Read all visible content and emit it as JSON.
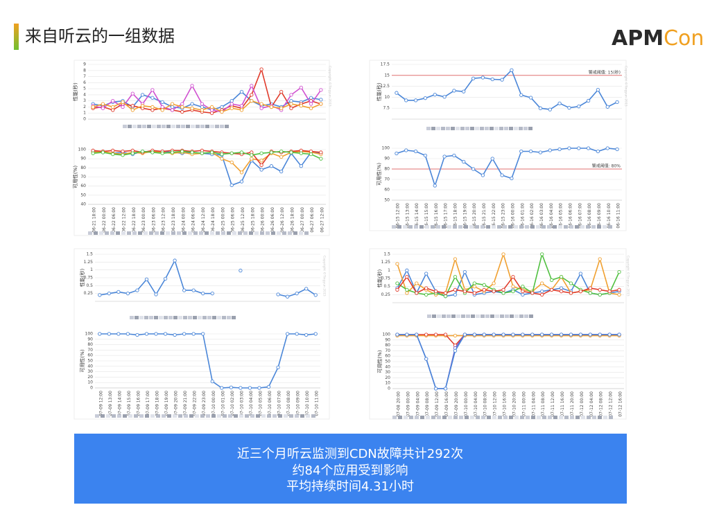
{
  "header": {
    "title": "来自听云的一组数据",
    "logo_dark": "APM",
    "logo_accent": "Con"
  },
  "watermark": "Copyright ©Tingyun 2015",
  "summary": {
    "lines": [
      "近三个月听云监测到CDN故障共计292次",
      "约84个应用受到影响",
      "平均持续时间4.31小时"
    ]
  },
  "chart_data": [
    {
      "type": "line",
      "y_label": "性能(秒)",
      "ylim": [
        0,
        9
      ],
      "yticks": [
        0,
        1,
        2,
        3,
        4,
        5,
        6,
        7,
        8,
        9
      ],
      "grid": true,
      "series": [
        {
          "color": "#4a86d8",
          "values": [
            2.5,
            2.2,
            2.8,
            3,
            2,
            4,
            3.5,
            2.8,
            2,
            1.8,
            2.5,
            2,
            1.5,
            2,
            3,
            4.5,
            3,
            2.2,
            2.5,
            2,
            3,
            2.8,
            3.5,
            3.2
          ]
        },
        {
          "color": "#e03a2a",
          "values": [
            1.8,
            2,
            1.5,
            2.5,
            2.2,
            1.8,
            1.5,
            1.8,
            1.5,
            1.2,
            1.5,
            1.2,
            1,
            1.5,
            2.2,
            1.8,
            4,
            8.2,
            2,
            4.5,
            1.8,
            2.5,
            3,
            2.5
          ]
        },
        {
          "color": "#d050d0",
          "values": [
            2.2,
            1.8,
            3,
            2,
            4.2,
            2.5,
            4.8,
            2,
            1.5,
            2.5,
            5.5,
            2.5,
            1.5,
            1.2,
            2.5,
            2.2,
            5.5,
            1.8,
            2.2,
            1.5,
            4,
            5.2,
            2.5,
            4.8
          ]
        },
        {
          "color": "#f0a030",
          "values": [
            2,
            2.5,
            2,
            2.8,
            1.5,
            2.2,
            2,
            1.5,
            2.5,
            2,
            1.8,
            1.5,
            2,
            1.2,
            1.8,
            1.5,
            3,
            2.5,
            2,
            1.8,
            2.5,
            2.2,
            1.8,
            2.5
          ]
        }
      ]
    },
    {
      "type": "line",
      "y_label": "可用性(%)",
      "ylim": [
        40,
        100
      ],
      "yticks": [
        40,
        50,
        60,
        70,
        80,
        90,
        100
      ],
      "grid": true,
      "categories": [
        "06-21 18:00",
        "06-22 00:00",
        "06-22 06:00",
        "06-22 12:00",
        "06-22 18:00",
        "06-23 00:00",
        "06-23 06:00",
        "06-23 12:00",
        "06-23 18:00",
        "06-24 00:00",
        "06-24 06:00",
        "06-24 12:00",
        "06-24 18:00",
        "06-25 00:00",
        "06-25 06:00",
        "06-25 12:00",
        "06-25 18:00",
        "06-26 00:00",
        "06-26 06:00",
        "06-26 12:00",
        "06-26 18:00",
        "06-27 00:00",
        "06-27 06:00",
        "06-27 12:00"
      ],
      "series": [
        {
          "color": "#4a86d8",
          "values": [
            98,
            97,
            96,
            97,
            95,
            98,
            97,
            98,
            97,
            96,
            97,
            96,
            95,
            94,
            61,
            65,
            88,
            78,
            82,
            76,
            96,
            82,
            97,
            96
          ]
        },
        {
          "color": "#f0a030",
          "values": [
            97,
            98,
            96,
            95,
            97,
            96,
            98,
            97,
            96,
            97,
            95,
            96,
            97,
            90,
            86,
            75,
            90,
            88,
            96,
            92,
            97,
            98,
            97,
            95
          ]
        },
        {
          "color": "#e03a2a",
          "values": [
            99,
            98,
            99,
            98,
            99,
            97,
            99,
            98,
            99,
            99,
            98,
            99,
            98,
            97,
            96,
            95,
            97,
            83,
            98,
            97,
            98,
            99,
            98,
            97
          ]
        },
        {
          "color": "#50c040",
          "values": [
            96,
            97,
            95,
            94,
            96,
            98,
            97,
            96,
            97,
            98,
            97,
            96,
            97,
            95,
            96,
            97,
            94,
            96,
            97,
            98,
            97,
            96,
            95,
            90
          ]
        }
      ]
    },
    {
      "type": "line",
      "y_label": "性能(秒)",
      "ylim": [
        5,
        17.5
      ],
      "yticks": [
        7.5,
        10,
        12.5,
        15,
        17.5
      ],
      "grid": true,
      "threshold": {
        "value": 15,
        "label": "警戒阈值: 15(秒)",
        "color": "#e07070"
      },
      "series": [
        {
          "color": "#4a86d8",
          "values": [
            11,
            9.3,
            9.3,
            9.8,
            10.6,
            10.1,
            11.5,
            11.3,
            14.3,
            14.5,
            14.1,
            14,
            16.2,
            10.5,
            9.9,
            7.5,
            7.2,
            8.6,
            7.6,
            7.9,
            9.2,
            11.7,
            7.8,
            8.9
          ]
        }
      ]
    },
    {
      "type": "line",
      "y_label": "可用性(%)",
      "ylim": [
        50,
        100
      ],
      "yticks": [
        50,
        60,
        70,
        80,
        90,
        100
      ],
      "grid": true,
      "threshold": {
        "value": 80,
        "label": "警戒阈值: 80%",
        "color": "#e07070"
      },
      "categories": [
        "06-15 12:00",
        "06-15 13:00",
        "06-15 14:00",
        "06-15 15:00",
        "06-15 16:00",
        "06-15 17:00",
        "06-15 18:00",
        "06-15 19:00",
        "06-15 20:00",
        "06-15 21:00",
        "06-15 22:00",
        "06-15 23:00",
        "06-16 00:00",
        "06-16 01:00",
        "06-16 02:00",
        "06-16 03:00",
        "06-16 04:00",
        "06-16 05:00",
        "06-16 06:00",
        "06-16 07:00",
        "06-16 08:00",
        "06-16 09:00",
        "06-16 10:00",
        "06-16 11:00"
      ],
      "series": [
        {
          "color": "#4a86d8",
          "values": [
            95,
            98,
            97,
            93,
            64,
            92,
            93,
            87,
            80,
            74,
            90,
            74,
            71,
            97,
            97,
            96,
            98,
            99,
            100,
            100,
            100,
            97,
            100,
            99
          ]
        }
      ]
    },
    {
      "type": "line",
      "y_label": "性能(秒)",
      "ylim": [
        0,
        1.5
      ],
      "yticks": [
        0.25,
        0.5,
        0.75,
        1,
        1.25,
        1.5
      ],
      "grid": true,
      "series": [
        {
          "color": "#4a86d8",
          "values": [
            0.2,
            0.25,
            0.3,
            0.25,
            0.35,
            0.7,
            0.22,
            0.72,
            1.3,
            0.35,
            0.35,
            0.25,
            0.25,
            null,
            null,
            0.98,
            null,
            null,
            null,
            0.22,
            0.15,
            0.25,
            0.4,
            0.2
          ]
        }
      ]
    },
    {
      "type": "line",
      "y_label": "可用性(%)",
      "ylim": [
        0,
        100
      ],
      "yticks": [
        0,
        10,
        20,
        30,
        40,
        50,
        60,
        70,
        80,
        90,
        100
      ],
      "grid": true,
      "categories": [
        "07-09 12:00",
        "07-09 13:00",
        "07-09 14:00",
        "07-09 15:00",
        "07-09 16:00",
        "07-09 17:00",
        "07-09 18:00",
        "07-09 19:00",
        "07-09 20:00",
        "07-09 21:00",
        "07-09 22:00",
        "07-09 23:00",
        "07-10 00:00",
        "07-10 01:00",
        "07-10 02:00",
        "07-10 03:00",
        "07-10 04:00",
        "07-10 05:00",
        "07-10 06:00",
        "07-10 07:00",
        "07-10 08:00",
        "07-10 09:00",
        "07-10 10:00",
        "07-10 11:00"
      ],
      "series": [
        {
          "color": "#4a86d8",
          "values": [
            100,
            100,
            100,
            100,
            98,
            100,
            100,
            100,
            98,
            100,
            100,
            100,
            12,
            0,
            1,
            0,
            0,
            0,
            2,
            38,
            100,
            100,
            98,
            100
          ]
        }
      ]
    },
    {
      "type": "line",
      "y_label": "性能(秒)",
      "ylim": [
        0,
        1.5
      ],
      "yticks": [
        0.25,
        0.5,
        0.75,
        1,
        1.25,
        1.5
      ],
      "grid": true,
      "series": [
        {
          "color": "#4a86d8",
          "values": [
            0.45,
            1,
            0.3,
            0.9,
            0.35,
            0.2,
            0.25,
            0.95,
            0.25,
            0.3,
            0.35,
            0.3,
            0.4,
            0.25,
            0.3,
            0.35,
            0.4,
            0.45,
            0.35,
            0.9,
            0.3,
            0.25,
            0.3,
            0.35
          ]
        },
        {
          "color": "#f0a030",
          "values": [
            1.2,
            0.3,
            0.6,
            0.4,
            0.25,
            0.3,
            1.35,
            0.4,
            0.5,
            0.35,
            0.6,
            1.5,
            0.5,
            0.4,
            0.35,
            0.6,
            0.4,
            0.8,
            0.3,
            0.35,
            0.4,
            1.35,
            0.3,
            0.25
          ]
        },
        {
          "color": "#50c040",
          "values": [
            0.6,
            0.4,
            0.3,
            0.25,
            0.3,
            0.2,
            0.8,
            0.3,
            0.6,
            0.55,
            0.4,
            0.3,
            0.35,
            0.5,
            0.3,
            1.5,
            0.7,
            0.8,
            0.6,
            0.4,
            0.3,
            0.25,
            0.3,
            0.95
          ]
        },
        {
          "color": "#e03a2a",
          "values": [
            0.4,
            0.8,
            0.3,
            0.45,
            0.35,
            0.3,
            0.4,
            0.35,
            0.3,
            0.4,
            0.35,
            0.4,
            0.8,
            0.35,
            0.3,
            0.25,
            0.4,
            0.35,
            0.3,
            0.35,
            0.45,
            0.4,
            0.35,
            0.4
          ]
        }
      ]
    },
    {
      "type": "line",
      "y_label": "可用性(%)",
      "ylim": [
        0,
        100
      ],
      "yticks": [
        0,
        10,
        20,
        30,
        40,
        50,
        60,
        70,
        80,
        90,
        100
      ],
      "grid": true,
      "categories": [
        "07-08 20:00",
        "07-09 00:00",
        "07-09 04:00",
        "07-09 08:00",
        "07-09 12:00",
        "07-09 16:00",
        "07-09 20:00",
        "07-10 00:00",
        "07-10 04:00",
        "07-10 08:00",
        "07-10 12:00",
        "07-10 16:00",
        "07-10 20:00",
        "07-11 00:00",
        "07-11 04:00",
        "07-11 08:00",
        "07-11 12:00",
        "07-11 16:00",
        "07-11 20:00",
        "07-12 00:00",
        "07-12 04:00",
        "07-12 08:00",
        "07-12 12:00",
        "07-12 16:00"
      ],
      "series": [
        {
          "color": "#f0a030",
          "values": [
            98,
            98,
            98,
            98,
            98,
            98,
            98,
            98,
            98,
            98,
            98,
            98,
            98,
            98,
            98,
            98,
            98,
            98,
            98,
            98,
            98,
            98,
            98,
            98
          ]
        },
        {
          "color": "#e03a2a",
          "values": [
            100,
            100,
            100,
            100,
            100,
            100,
            80,
            100,
            100,
            100,
            100,
            100,
            100,
            100,
            100,
            100,
            100,
            100,
            100,
            100,
            100,
            100,
            100,
            100
          ]
        },
        {
          "color": "#7060d0",
          "values": [
            100,
            100,
            100,
            55,
            0,
            0,
            75,
            100,
            100,
            100,
            100,
            100,
            100,
            100,
            100,
            100,
            100,
            100,
            100,
            100,
            100,
            100,
            100,
            100
          ]
        },
        {
          "color": "#4a86d8",
          "values": [
            100,
            100,
            100,
            55,
            0,
            0,
            70,
            100,
            100,
            100,
            100,
            100,
            100,
            100,
            100,
            100,
            100,
            100,
            100,
            100,
            100,
            100,
            100,
            100
          ]
        }
      ]
    }
  ]
}
